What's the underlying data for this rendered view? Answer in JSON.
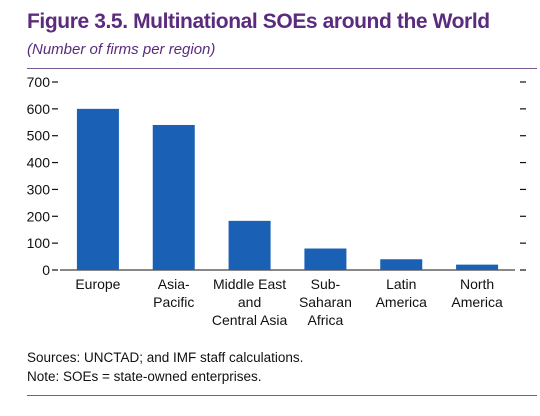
{
  "figure": {
    "title": "Figure 3.5. Multinational SOEs around the World",
    "subtitle": "(Number of firms per region)"
  },
  "chart_data": {
    "type": "bar",
    "categories": [
      [
        "Europe"
      ],
      [
        "Asia-",
        "Pacific"
      ],
      [
        "Middle East",
        "and",
        "Central Asia"
      ],
      [
        "Sub-",
        "Saharan",
        "Africa"
      ],
      [
        "Latin",
        "America"
      ],
      [
        "North",
        "America"
      ]
    ],
    "values": [
      600,
      540,
      183,
      80,
      40,
      20
    ],
    "ylim": [
      0,
      700
    ],
    "yticks": [
      0,
      100,
      200,
      300,
      400,
      500,
      600,
      700
    ],
    "ytick_labels": [
      "0",
      "100",
      "200",
      "300",
      "400",
      "500",
      "600",
      "700"
    ],
    "right_axis_ticks": true,
    "grid": false,
    "bar_color": "#1a60b5"
  },
  "notes": {
    "sources": "Sources: UNCTAD; and IMF staff calculations.",
    "note": "Note: SOEs = state-owned enterprises."
  }
}
